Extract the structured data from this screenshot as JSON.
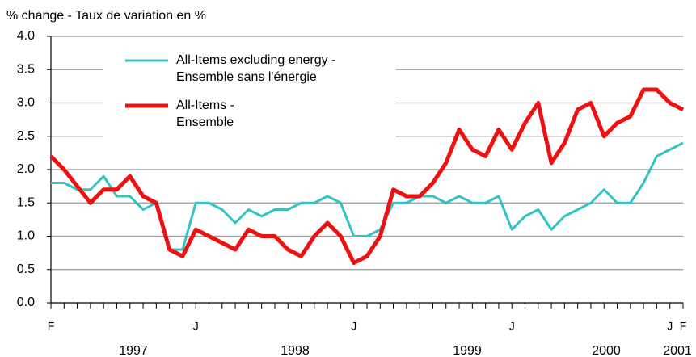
{
  "chart_data": {
    "type": "line",
    "y_axis_title": "% change - Taux de variation en %",
    "categories": [
      "F",
      null,
      null,
      null,
      null,
      null,
      null,
      null,
      null,
      null,
      null,
      "J",
      null,
      null,
      null,
      null,
      null,
      null,
      null,
      null,
      null,
      null,
      null,
      "J",
      null,
      null,
      null,
      null,
      null,
      null,
      null,
      null,
      null,
      null,
      null,
      "J",
      null,
      null,
      null,
      null,
      null,
      null,
      null,
      null,
      null,
      null,
      null,
      "J",
      "F"
    ],
    "year_labels": [
      "1997",
      "1998",
      "1999",
      "2000",
      "2001"
    ],
    "series": [
      {
        "name": "All-Items excluding energy -\nEnsemble sans l'énergie",
        "color": "#33c3c3",
        "values": [
          1.8,
          1.8,
          1.7,
          1.7,
          1.9,
          1.6,
          1.6,
          1.4,
          1.5,
          0.8,
          0.8,
          1.5,
          1.5,
          1.4,
          1.2,
          1.4,
          1.3,
          1.4,
          1.4,
          1.5,
          1.5,
          1.6,
          1.5,
          1.0,
          1.0,
          1.1,
          1.5,
          1.5,
          1.6,
          1.6,
          1.5,
          1.6,
          1.5,
          1.5,
          1.6,
          1.1,
          1.3,
          1.4,
          1.1,
          1.3,
          1.4,
          1.5,
          1.7,
          1.5,
          1.5,
          1.8,
          2.2,
          2.3,
          2.4
        ]
      },
      {
        "name": "All-Items -\nEnsemble",
        "color": "#ee1111",
        "values": [
          2.2,
          2.0,
          1.75,
          1.5,
          1.7,
          1.7,
          1.9,
          1.6,
          1.5,
          0.8,
          0.7,
          1.1,
          1.0,
          0.9,
          0.8,
          1.1,
          1.0,
          1.0,
          0.8,
          0.7,
          1.0,
          1.2,
          1.0,
          0.6,
          0.7,
          1.0,
          1.7,
          1.6,
          1.6,
          1.8,
          2.1,
          2.6,
          2.3,
          2.2,
          2.6,
          2.3,
          2.7,
          3.0,
          2.1,
          2.4,
          2.9,
          3.0,
          2.5,
          2.7,
          2.8,
          3.2,
          3.2,
          3.0,
          2.9
        ]
      }
    ],
    "ylim": [
      0,
      4
    ],
    "yticks": [
      {
        "value": 0,
        "label": "0.0"
      },
      0.5,
      {
        "value": 1,
        "label": "1.0"
      },
      1.5,
      {
        "value": 2,
        "label": "2.0"
      },
      2.5,
      {
        "value": 3,
        "label": "3.0"
      },
      3.5,
      {
        "value": 4,
        "label": "4.0"
      }
    ],
    "grid": true,
    "legend": "top-left"
  }
}
